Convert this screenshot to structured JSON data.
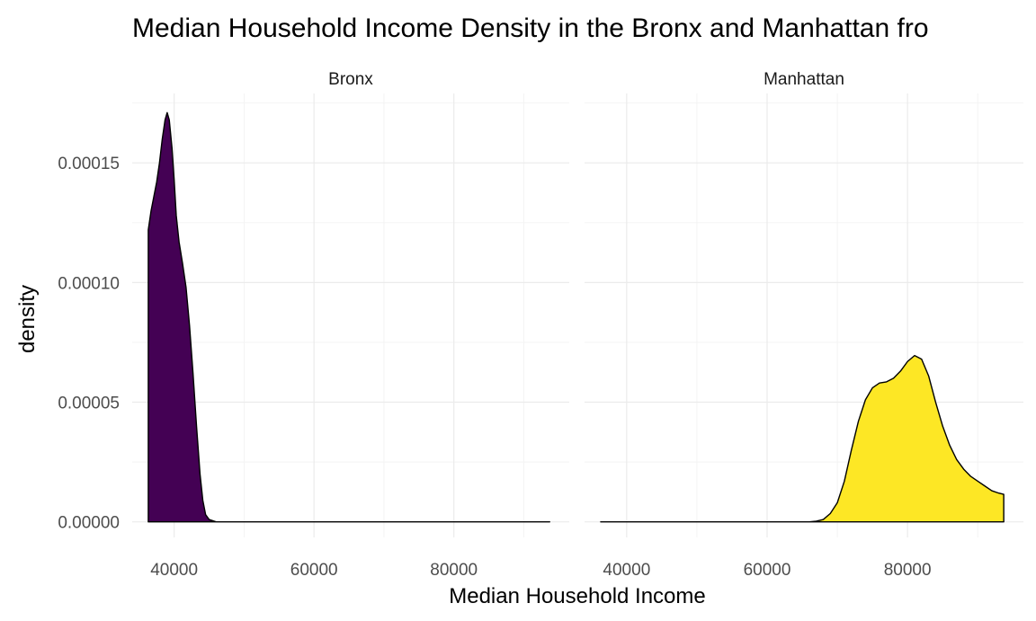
{
  "chart_data": {
    "type": "area",
    "title": "Median Household Income Density in the Bronx and Manhattan fro",
    "xlabel": "Median Household Income",
    "ylabel": "density",
    "xlim": [
      34000,
      96500
    ],
    "ylim": [
      -6.5e-06,
      0.000179
    ],
    "x_ticks": [
      40000,
      60000,
      80000
    ],
    "x_tick_labels": [
      "40000",
      "60000",
      "80000"
    ],
    "y_ticks": [
      0,
      5e-05,
      0.0001,
      0.00015
    ],
    "y_tick_labels": [
      "0.00000",
      "0.00005",
      "0.00010",
      "0.00015"
    ],
    "grid": true,
    "legend": "none",
    "facets": [
      {
        "label": "Bronx",
        "fill": "#440154",
        "x_range": [
          36300,
          93700
        ],
        "points": [
          [
            36300,
            0.000122
          ],
          [
            36700,
            0.00013
          ],
          [
            37100,
            0.000136
          ],
          [
            37500,
            0.000142
          ],
          [
            37900,
            0.00015
          ],
          [
            38300,
            0.00016
          ],
          [
            38700,
            0.000168
          ],
          [
            39000,
            0.000171
          ],
          [
            39300,
            0.000168
          ],
          [
            39700,
            0.000156
          ],
          [
            40000,
            0.000143
          ],
          [
            40300,
            0.000128
          ],
          [
            40700,
            0.000117
          ],
          [
            41200,
            0.000108
          ],
          [
            41700,
            9.8e-05
          ],
          [
            42200,
            8.2e-05
          ],
          [
            42700,
            6.2e-05
          ],
          [
            43200,
            4e-05
          ],
          [
            43700,
            2e-05
          ],
          [
            44100,
            9e-06
          ],
          [
            44500,
            3e-06
          ],
          [
            45000,
            1e-06
          ],
          [
            46000,
            0.0
          ],
          [
            93700,
            0.0
          ]
        ]
      },
      {
        "label": "Manhattan",
        "fill": "#fde725",
        "x_range": [
          36300,
          93700
        ],
        "points": [
          [
            36300,
            0.0
          ],
          [
            66000,
            0.0
          ],
          [
            67000,
            3e-07
          ],
          [
            68000,
            1e-06
          ],
          [
            69000,
            3.5e-06
          ],
          [
            70000,
            8e-06
          ],
          [
            71000,
            1.7e-05
          ],
          [
            72000,
            3e-05
          ],
          [
            73000,
            4.2e-05
          ],
          [
            74000,
            5.1e-05
          ],
          [
            75000,
            5.6e-05
          ],
          [
            76000,
            5.8e-05
          ],
          [
            77000,
            5.85e-05
          ],
          [
            78000,
            6e-05
          ],
          [
            79000,
            6.3e-05
          ],
          [
            80000,
            6.7e-05
          ],
          [
            81000,
            6.95e-05
          ],
          [
            82000,
            6.8e-05
          ],
          [
            83000,
            6.1e-05
          ],
          [
            84000,
            5e-05
          ],
          [
            85000,
            4e-05
          ],
          [
            86000,
            3.2e-05
          ],
          [
            87000,
            2.6e-05
          ],
          [
            88000,
            2.2e-05
          ],
          [
            89000,
            1.9e-05
          ],
          [
            90000,
            1.7e-05
          ],
          [
            91000,
            1.5e-05
          ],
          [
            92000,
            1.3e-05
          ],
          [
            93000,
            1.2e-05
          ],
          [
            93700,
            1.15e-05
          ]
        ]
      }
    ]
  }
}
